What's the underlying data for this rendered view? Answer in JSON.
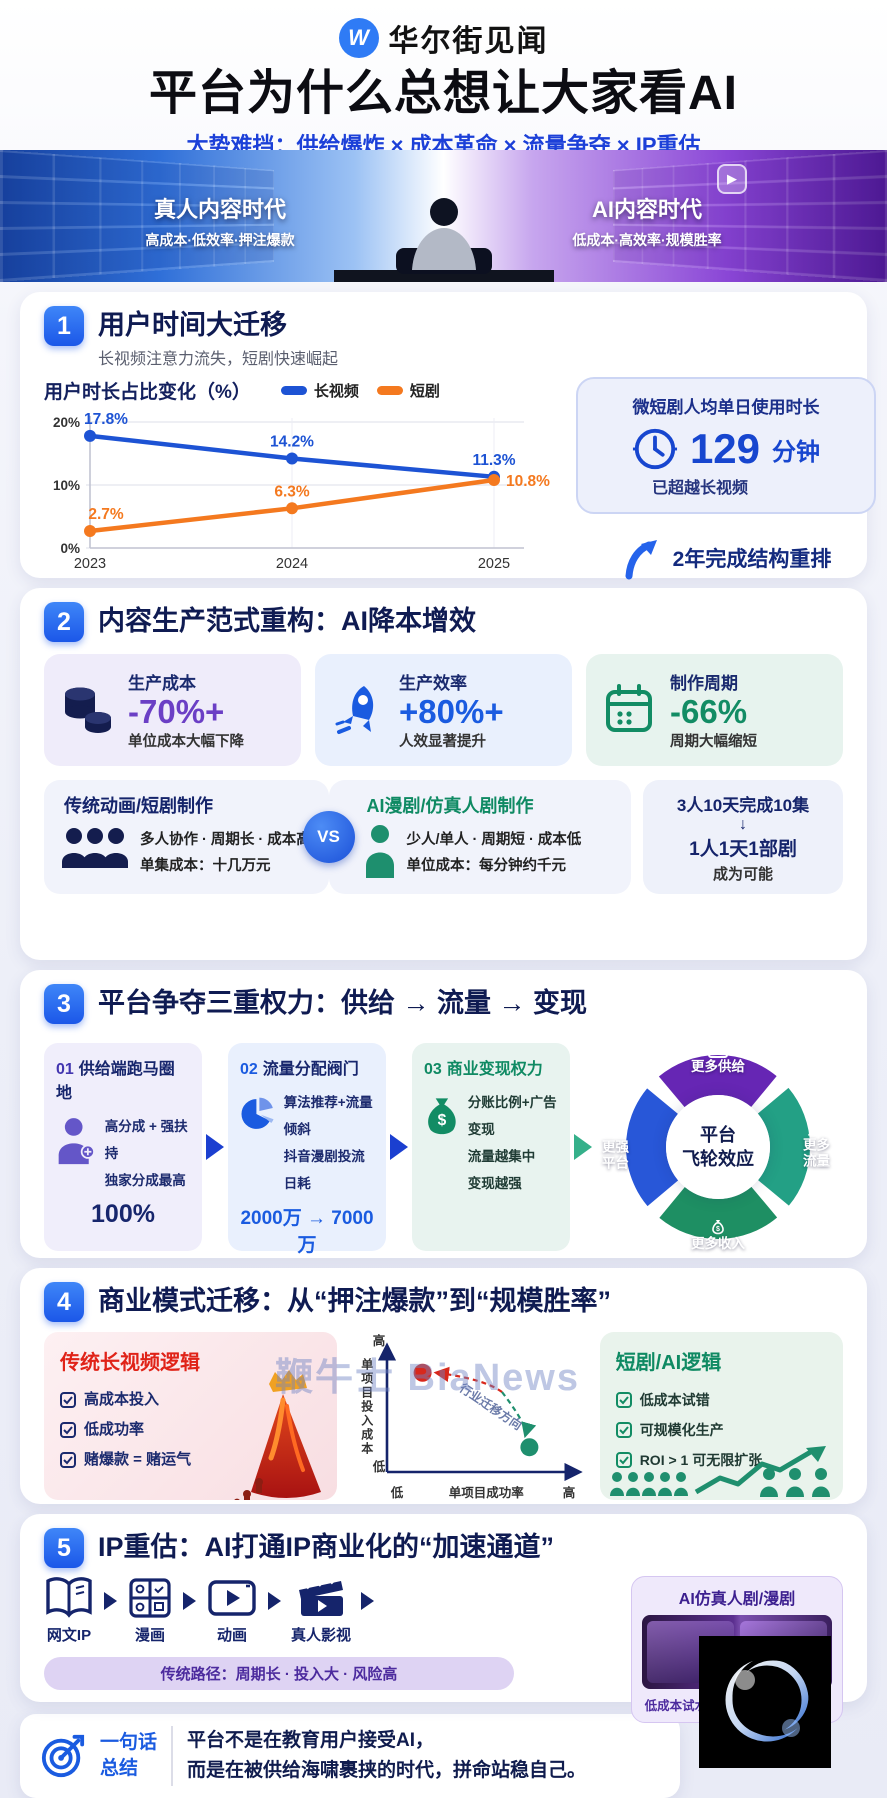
{
  "page": {
    "watermark": "鞭牛士 BiaNews"
  },
  "header": {
    "brand": "华尔街见闻",
    "logo_letter": "W",
    "title": "平台为什么总想让大家看AI",
    "subtitle": "大势难挡：供给爆炸 × 成本革命 × 流量争夺 × IP重估"
  },
  "hero": {
    "left_title": "真人内容时代",
    "left_caption": "高成本·低效率·押注爆款",
    "right_title": "AI内容时代",
    "right_caption": "低成本·高效率·规模胜率",
    "play_glyph": "▶"
  },
  "section1": {
    "num": "1",
    "title": "用户时间大迁移",
    "subtitle": "长视频注意力流失，短剧快速崛起",
    "stat_title": "微短剧人均单日使用时长",
    "stat_value": "129",
    "stat_unit": "分钟",
    "stat_caption": "已超越长视频",
    "note": "2年完成结构重排"
  },
  "chart_data": [
    {
      "type": "line",
      "title": "用户时长占比变化（%）",
      "categories": [
        "2023",
        "2024",
        "2025"
      ],
      "series": [
        {
          "name": "长视频",
          "color": "#1d53d4",
          "values": [
            17.8,
            14.2,
            11.3
          ]
        },
        {
          "name": "短剧",
          "color": "#f4791f",
          "values": [
            2.7,
            6.3,
            10.8
          ]
        }
      ],
      "ylim": [
        0,
        20
      ],
      "yticks": [
        0,
        10,
        20
      ],
      "ytick_labels": [
        "0%",
        "10%",
        "20%"
      ],
      "legend_position": "top",
      "grid": true,
      "value_suffix": "%"
    },
    {
      "type": "scatter",
      "xlabel": "单项目成功率",
      "ylabel": "单项目投入成本",
      "x_end_labels": [
        "低",
        "高"
      ],
      "y_end_labels": [
        "低",
        "高"
      ],
      "points": [
        {
          "name": "传统长视频",
          "x": 0.2,
          "y": 0.8,
          "color": "#d8281c"
        },
        {
          "name": "短剧/AI",
          "x": 0.8,
          "y": 0.2,
          "color": "#1f8f6e"
        }
      ],
      "annotation": "行业迁移方向"
    }
  ],
  "section2": {
    "num": "2",
    "title": "内容生产范式重构：AI降本增效",
    "stats": [
      {
        "label": "生产成本",
        "value": "-70%+",
        "caption": "单位成本大幅下降",
        "color": "#6b3fc5"
      },
      {
        "label": "生产效率",
        "value": "+80%+",
        "caption": "人效显著提升",
        "color": "#1a5be0"
      },
      {
        "label": "制作周期",
        "value": "-66%",
        "caption": "周期大幅缩短",
        "color": "#128c64"
      }
    ],
    "vs": {
      "left_title": "传统动画/短剧制作",
      "left_line1": "多人协作 · 周期长 · 成本高",
      "left_line2": "单集成本：十几万元",
      "vs_label": "VS",
      "right_title": "AI漫剧/仿真人剧制作",
      "right_line1": "少人/单人 · 周期短 · 成本低",
      "right_line2": "单位成本：每分钟约千元",
      "result_line1": "3人10天完成10集",
      "result_arrow": "↓",
      "result_line2": "1人1天1部剧",
      "result_line3": "成为可能"
    }
  },
  "section3": {
    "num": "3",
    "title": "平台争夺三重权力：供给 → 流量 → 变现",
    "cards": [
      {
        "num": "01",
        "title": "供给端跑马圈地",
        "line1": "高分成 + 强扶持",
        "line2": "独家分成最高",
        "big": "100%"
      },
      {
        "num": "02",
        "title": "流量分配阀门",
        "line1": "算法推荐+流量倾斜",
        "line2": "抖音漫剧投流日耗",
        "big": "2000万 → 7000万"
      },
      {
        "num": "03",
        "title": "商业变现权力",
        "line1": "分账比例+广告变现",
        "line2": "流量越集中",
        "line3": "变现越强"
      }
    ],
    "flywheel": {
      "center_line1": "平台",
      "center_line2": "飞轮效应",
      "top": "更多供给",
      "right_line1": "更多",
      "right_line2": "流量",
      "bottom": "更多收入",
      "left_line1": "更强",
      "left_line2": "平台"
    }
  },
  "section4": {
    "num": "4",
    "title": "商业模式迁移：从“押注爆款”到“规模胜率”",
    "left_title": "传统长视频逻辑",
    "left_items": [
      "高成本投入",
      "低成功率",
      "赌爆款 = 赌运气"
    ],
    "right_title": "短剧/AI逻辑",
    "right_items": [
      "低成本试错",
      "可规模化生产",
      "ROI > 1 可无限扩张"
    ]
  },
  "section5": {
    "num": "5",
    "title": "IP重估：AI打通IP商业化的“加速通道”",
    "pipeline": [
      "网文IP",
      "漫画",
      "动画",
      "真人影视"
    ],
    "ai_card_title": "AI仿真人剧/漫剧",
    "ai_play_glyph": "▶",
    "ai_card_caption": "低成本试水 · 快速验证 · 扩大受众",
    "traditional_path": "传统路径：周期长 · 投入大 · 风险高"
  },
  "footer": {
    "badge_line1": "一句话",
    "badge_line2": "总结",
    "line1": "平台不是在教育用户接受AI，",
    "line2": "而是在被供给海啸裹挟的时代，拼命站稳自己。"
  }
}
